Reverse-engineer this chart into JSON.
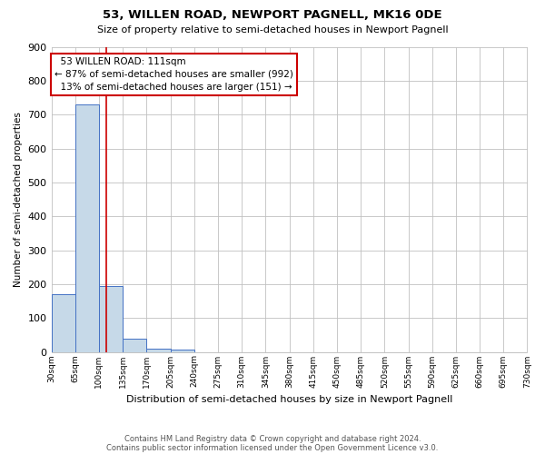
{
  "title": "53, WILLEN ROAD, NEWPORT PAGNELL, MK16 0DE",
  "subtitle": "Size of property relative to semi-detached houses in Newport Pagnell",
  "xlabel": "Distribution of semi-detached houses by size in Newport Pagnell",
  "ylabel": "Number of semi-detached properties",
  "footer_line1": "Contains HM Land Registry data © Crown copyright and database right 2024.",
  "footer_line2": "Contains public sector information licensed under the Open Government Licence v3.0.",
  "property_size": 111,
  "property_label": "53 WILLEN ROAD: 111sqm",
  "pct_smaller": 87,
  "count_smaller": 992,
  "pct_larger": 13,
  "count_larger": 151,
  "bin_edges": [
    30,
    65,
    100,
    135,
    170,
    205,
    240,
    275,
    310,
    345,
    380,
    415,
    450,
    485,
    520,
    555,
    590,
    625,
    660,
    695,
    730
  ],
  "bar_heights": [
    170,
    730,
    195,
    40,
    10,
    8,
    0,
    0,
    0,
    0,
    0,
    0,
    0,
    0,
    0,
    0,
    0,
    0,
    0,
    0
  ],
  "bar_color": "#c6d9e8",
  "bar_edge_color": "#4472c4",
  "red_line_color": "#cc0000",
  "annotation_box_color": "#cc0000",
  "annotation_text_color": "#000000",
  "grid_color": "#c0c0c0",
  "background_color": "#ffffff",
  "ylim": [
    0,
    900
  ],
  "yticks": [
    0,
    100,
    200,
    300,
    400,
    500,
    600,
    700,
    800,
    900
  ]
}
